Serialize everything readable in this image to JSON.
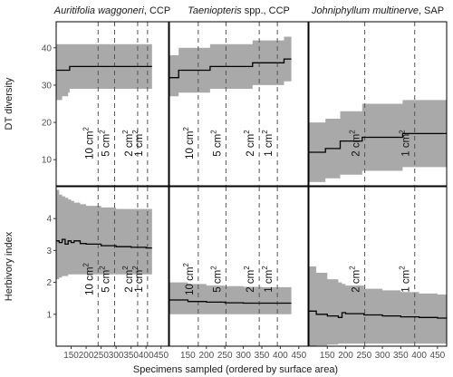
{
  "figure": {
    "xlabel": "Specimens sampled (ordered by surface area)",
    "colors": {
      "band": "#a9a9a9",
      "line": "#000000",
      "dash": "#555555",
      "frame": "#000000"
    }
  },
  "chart_data": [
    {
      "type": "area",
      "title_italic": "Auritifolia waggoneri",
      "title_rest": ", CCP",
      "ylabel": "DT diversity",
      "row": 0,
      "col": 0,
      "xlim": [
        100,
        475
      ],
      "ylim": [
        3,
        47
      ],
      "xticks": [
        150,
        200,
        250,
        300,
        350,
        400,
        450
      ],
      "yticks": [
        10,
        20,
        30,
        40
      ],
      "x": [
        100,
        110,
        120,
        140,
        145,
        160,
        200,
        250,
        300,
        350,
        400,
        420
      ],
      "mean": [
        34,
        34,
        34,
        34,
        35,
        35,
        35,
        35,
        35,
        35,
        35,
        35
      ],
      "lower": [
        26,
        26,
        27,
        28,
        29,
        29,
        29,
        29,
        29,
        29,
        29,
        29
      ],
      "upper": [
        41,
        41,
        41,
        41,
        41,
        41,
        41,
        41,
        41,
        41,
        41,
        41
      ],
      "markers": [
        {
          "x": 240,
          "base": "10 cm",
          "sup": "2"
        },
        {
          "x": 295,
          "base": "5 cm",
          "sup": "2"
        },
        {
          "x": 372,
          "base": "2 cm",
          "sup": "2"
        },
        {
          "x": 405,
          "base": "1 cm",
          "sup": "2"
        }
      ]
    },
    {
      "type": "area",
      "title_italic": "Taeniopteris",
      "title_rest": " spp., CCP",
      "row": 0,
      "col": 1,
      "xlim": [
        100,
        475
      ],
      "ylim": [
        3,
        47
      ],
      "xticks": [
        150,
        200,
        250,
        300,
        350,
        400,
        450
      ],
      "x": [
        100,
        120,
        125,
        200,
        210,
        320,
        325,
        400,
        410,
        430
      ],
      "mean": [
        32,
        32,
        34,
        34,
        35,
        35,
        36,
        36,
        37,
        37
      ],
      "lower": [
        27,
        27,
        28,
        28,
        29,
        29,
        30,
        30,
        31,
        31
      ],
      "upper": [
        38,
        38,
        40,
        40,
        41,
        41,
        42,
        42,
        43,
        43
      ],
      "markers": [
        {
          "x": 178,
          "base": "10 cm",
          "sup": "2"
        },
        {
          "x": 253,
          "base": "5 cm",
          "sup": "2"
        },
        {
          "x": 343,
          "base": "2 cm",
          "sup": "2"
        },
        {
          "x": 392,
          "base": "1 cm",
          "sup": "2"
        }
      ]
    },
    {
      "type": "area",
      "title_italic": "Johniphyllum multinerve",
      "title_rest": ", SAP",
      "row": 0,
      "col": 2,
      "xlim": [
        100,
        475
      ],
      "ylim": [
        3,
        47
      ],
      "xticks": [
        150,
        200,
        250,
        300,
        350,
        400,
        450
      ],
      "x": [
        100,
        140,
        145,
        180,
        185,
        240,
        245,
        350,
        355,
        475
      ],
      "mean": [
        12,
        12,
        13,
        13,
        15,
        15,
        16,
        16,
        17,
        17
      ],
      "lower": [
        4,
        4,
        5,
        5,
        6,
        6,
        7,
        7,
        8,
        8
      ],
      "upper": [
        20,
        20,
        21,
        21,
        23,
        23,
        25,
        25,
        26,
        26
      ],
      "markers": [
        {
          "x": 252,
          "base": "2 cm",
          "sup": "2"
        },
        {
          "x": 388,
          "base": "1 cm",
          "sup": "2"
        }
      ]
    },
    {
      "type": "area",
      "ylabel": "Herbivory index",
      "row": 1,
      "col": 0,
      "xlim": [
        100,
        475
      ],
      "ylim": [
        0,
        5
      ],
      "xticks": [
        150,
        200,
        250,
        300,
        350,
        400,
        450
      ],
      "yticks": [
        1,
        2,
        3,
        4
      ],
      "x": [
        100,
        110,
        120,
        130,
        140,
        150,
        160,
        180,
        200,
        250,
        300,
        350,
        400,
        420
      ],
      "mean": [
        3.3,
        3.25,
        3.35,
        3.2,
        3.3,
        3.25,
        3.3,
        3.22,
        3.2,
        3.15,
        3.12,
        3.1,
        3.08,
        3.08
      ],
      "lower": [
        2.1,
        2.15,
        2.2,
        2.2,
        2.25,
        2.25,
        2.25,
        2.25,
        2.25,
        2.25,
        2.25,
        2.25,
        2.25,
        2.25
      ],
      "upper": [
        4.9,
        4.75,
        4.7,
        4.65,
        4.6,
        4.55,
        4.5,
        4.45,
        4.4,
        4.35,
        4.3,
        4.3,
        4.3,
        4.3
      ],
      "markers": [
        {
          "x": 240,
          "base": "10 cm",
          "sup": "2"
        },
        {
          "x": 295,
          "base": "5 cm",
          "sup": "2"
        },
        {
          "x": 372,
          "base": "2 cm",
          "sup": "2"
        },
        {
          "x": 405,
          "base": "1 cm",
          "sup": "2"
        }
      ]
    },
    {
      "type": "area",
      "row": 1,
      "col": 1,
      "xlim": [
        100,
        475
      ],
      "ylim": [
        0,
        5
      ],
      "xticks": [
        150,
        200,
        250,
        300,
        350,
        400,
        450
      ],
      "x": [
        100,
        150,
        200,
        250,
        300,
        350,
        400,
        430
      ],
      "mean": [
        1.45,
        1.4,
        1.38,
        1.36,
        1.35,
        1.35,
        1.35,
        1.35
      ],
      "lower": [
        1.0,
        1.0,
        1.0,
        1.0,
        1.0,
        1.0,
        1.0,
        1.0
      ],
      "upper": [
        2.0,
        1.95,
        1.9,
        1.88,
        1.86,
        1.85,
        1.85,
        1.85
      ],
      "markers": [
        {
          "x": 178,
          "base": "10 cm",
          "sup": "2"
        },
        {
          "x": 253,
          "base": "5 cm",
          "sup": "2"
        },
        {
          "x": 343,
          "base": "2 cm",
          "sup": "2"
        },
        {
          "x": 392,
          "base": "1 cm",
          "sup": "2"
        }
      ]
    },
    {
      "type": "area",
      "row": 1,
      "col": 2,
      "xlim": [
        100,
        475
      ],
      "ylim": [
        0,
        5
      ],
      "xticks": [
        150,
        200,
        250,
        300,
        350,
        400,
        450
      ],
      "x": [
        100,
        120,
        150,
        180,
        190,
        200,
        250,
        300,
        350,
        400,
        450,
        475
      ],
      "mean": [
        1.1,
        1.0,
        0.95,
        0.9,
        1.05,
        1.02,
        0.98,
        0.95,
        0.92,
        0.9,
        0.88,
        0.87
      ],
      "lower": [
        0.0,
        0.02,
        0.05,
        0.08,
        0.08,
        0.08,
        0.08,
        0.08,
        0.08,
        0.08,
        0.08,
        0.08
      ],
      "upper": [
        2.5,
        2.3,
        2.1,
        2.0,
        1.95,
        1.9,
        1.8,
        1.75,
        1.7,
        1.65,
        1.62,
        1.6
      ],
      "markers": [
        {
          "x": 252,
          "base": "2 cm",
          "sup": "2"
        },
        {
          "x": 388,
          "base": "1 cm",
          "sup": "2"
        }
      ]
    }
  ]
}
